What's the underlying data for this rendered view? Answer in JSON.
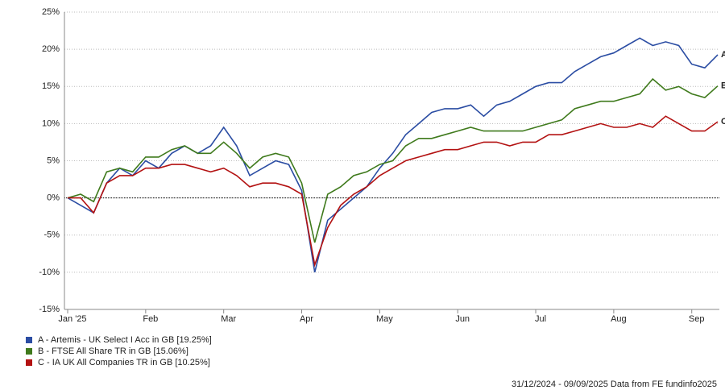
{
  "chart_data": {
    "type": "line",
    "categories": [
      "Jan '25",
      null,
      null,
      null,
      null,
      null,
      "Feb",
      null,
      null,
      null,
      null,
      null,
      "Mar",
      null,
      null,
      null,
      null,
      null,
      "Apr",
      null,
      null,
      null,
      null,
      null,
      "May",
      null,
      null,
      null,
      null,
      null,
      "Jun",
      null,
      null,
      null,
      null,
      null,
      "Jul",
      null,
      null,
      null,
      null,
      null,
      "Aug",
      null,
      null,
      null,
      null,
      null,
      "Sep",
      null,
      null
    ],
    "series": [
      {
        "name": "A - Artemis - UK Select I Acc in GB [19.25%]",
        "end_label": "A",
        "color": "#2b4da3",
        "values": [
          0,
          -1,
          -2,
          2,
          4,
          3,
          5,
          4,
          6,
          7,
          6,
          7,
          9.5,
          7,
          3,
          4,
          5,
          4.5,
          1,
          -10,
          -3,
          -1.5,
          0,
          1.5,
          4,
          6,
          8.5,
          10,
          11.5,
          12,
          12,
          12.5,
          11,
          12.5,
          13,
          14,
          15,
          15.5,
          15.5,
          17,
          18,
          19,
          19.5,
          20.5,
          21.5,
          20.5,
          21,
          20.5,
          18,
          17.5,
          19.25
        ]
      },
      {
        "name": "B - FTSE All Share TR in GB [15.06%]",
        "end_label": "B",
        "color": "#3f7a1c",
        "values": [
          0,
          0.5,
          -0.5,
          3.5,
          4,
          3.5,
          5.5,
          5.5,
          6.5,
          7,
          6,
          6,
          7.5,
          6,
          4,
          5.5,
          6,
          5.5,
          2,
          -6,
          0.5,
          1.5,
          3,
          3.5,
          4.5,
          5,
          7,
          8,
          8,
          8.5,
          9,
          9.5,
          9,
          9,
          9,
          9,
          9.5,
          10,
          10.5,
          12,
          12.5,
          13,
          13,
          13.5,
          14,
          16,
          14.5,
          15,
          14,
          13.5,
          15.06
        ]
      },
      {
        "name": "C - IA UK All Companies TR in GB [10.25%]",
        "end_label": "C",
        "color": "#b31212",
        "values": [
          0,
          0,
          -2,
          2,
          3,
          3,
          4,
          4,
          4.5,
          4.5,
          4,
          3.5,
          4,
          3,
          1.5,
          2,
          2,
          1.5,
          0.5,
          -9,
          -4,
          -1,
          0.5,
          1.5,
          3,
          4,
          5,
          5.5,
          6,
          6.5,
          6.5,
          7,
          7.5,
          7.5,
          7,
          7.5,
          7.5,
          8.5,
          8.5,
          9,
          9.5,
          10,
          9.5,
          9.5,
          10,
          9.5,
          11,
          10,
          9,
          9,
          10.25
        ]
      }
    ],
    "ylim": [
      -15,
      25
    ],
    "yticks": [
      {
        "value": -15,
        "label": "-15%"
      },
      {
        "value": -10,
        "label": "-10%"
      },
      {
        "value": -5,
        "label": "-5%"
      },
      {
        "value": 0,
        "label": "0%"
      },
      {
        "value": 5,
        "label": "5%"
      },
      {
        "value": 10,
        "label": "10%"
      },
      {
        "value": 15,
        "label": "15%"
      },
      {
        "value": 20,
        "label": "20%"
      },
      {
        "value": 25,
        "label": "25%"
      }
    ],
    "grid": true,
    "footer": "31/12/2024 - 09/09/2025 Data from FE fundinfo2025"
  }
}
